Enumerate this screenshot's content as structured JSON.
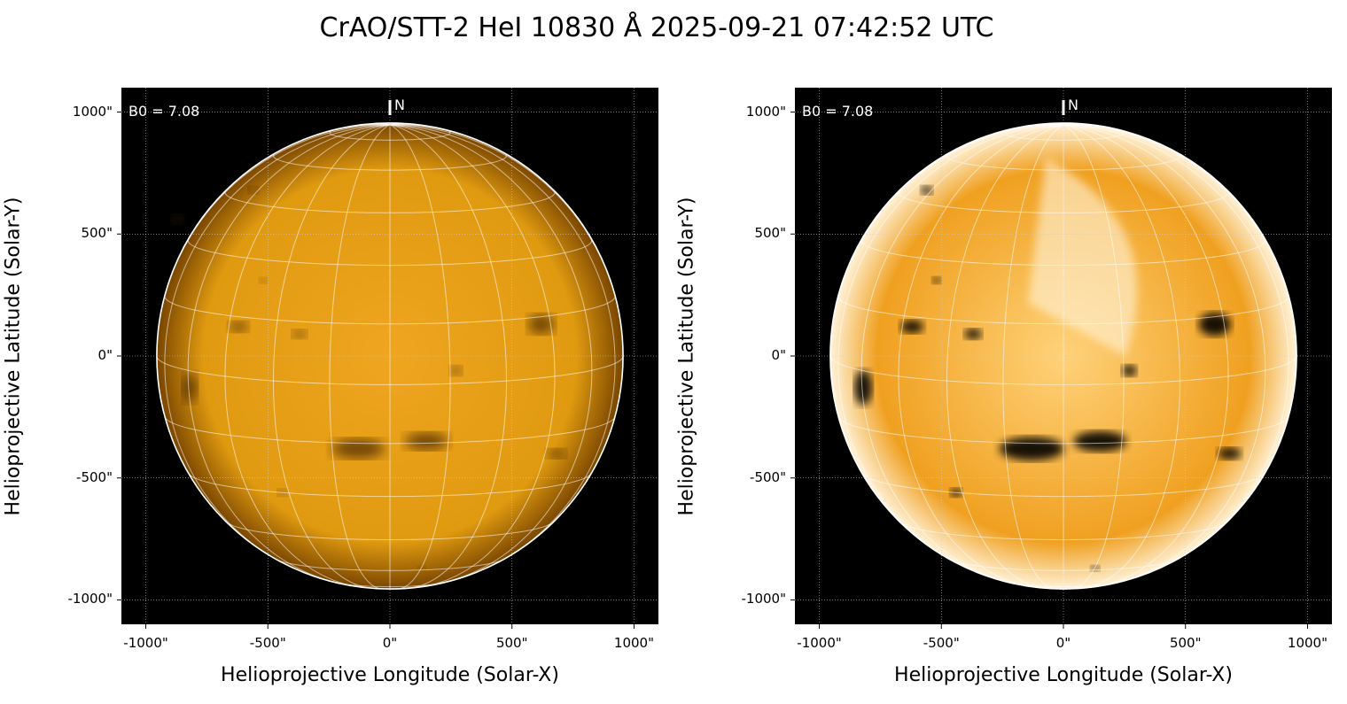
{
  "title": "CrAO/STT-2 HeI 10830 Å 2025-09-21 07:42:52 UTC",
  "panels": [
    {
      "name": "left",
      "b0_label": "B0 = 7.08",
      "north_label": "N",
      "contrast": "normal"
    },
    {
      "name": "right",
      "b0_label": "B0 = 7.08",
      "north_label": "N",
      "contrast": "enhanced"
    }
  ],
  "axes": {
    "xlabel": "Helioprojective Longitude (Solar-X)",
    "ylabel": "Helioprojective Latitude (Solar-Y)",
    "xticks": [
      "-1000\"",
      "-500\"",
      "0\"",
      "500\"",
      "1000\""
    ],
    "yticks": [
      "1000\"",
      "500\"",
      "0\"",
      "-500\"",
      "-1000\""
    ],
    "tick_values": [
      -1000,
      -500,
      0,
      500,
      1000
    ],
    "range": [
      -1100,
      1100
    ]
  },
  "b0_deg": 7.08,
  "solar_radius_arcsec": 955,
  "grid_spacing_deg": 15,
  "colors": {
    "sun_light": "#f5b020",
    "sun_dark": "#b36a00",
    "limb": "#ffffff",
    "bg": "#000000"
  }
}
